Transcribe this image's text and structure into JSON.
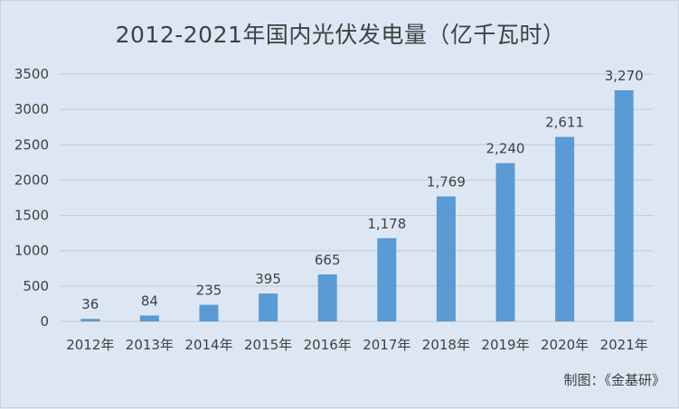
{
  "chart_data": {
    "type": "bar",
    "title": "2012-2021年国内光伏发电量（亿千瓦时）",
    "categories": [
      "2012年",
      "2013年",
      "2014年",
      "2015年",
      "2016年",
      "2017年",
      "2018年",
      "2019年",
      "2020年",
      "2021年"
    ],
    "values": [
      36,
      84,
      235,
      395,
      665,
      1178,
      1769,
      2240,
      2611,
      3270
    ],
    "data_labels": [
      "36",
      "84",
      "235",
      "395",
      "665",
      "1,178",
      "1,769",
      "2,240",
      "2,611",
      "3,270"
    ],
    "yticks": [
      "0",
      "500",
      "1000",
      "1500",
      "2000",
      "2500",
      "3000",
      "3500"
    ],
    "ylim": [
      0,
      3500
    ],
    "grid": true,
    "bar_color": "#5b9bd5",
    "grid_color": "#c4c9d0",
    "background_color": "#dde7f3",
    "source": "制图：《金基研》"
  }
}
